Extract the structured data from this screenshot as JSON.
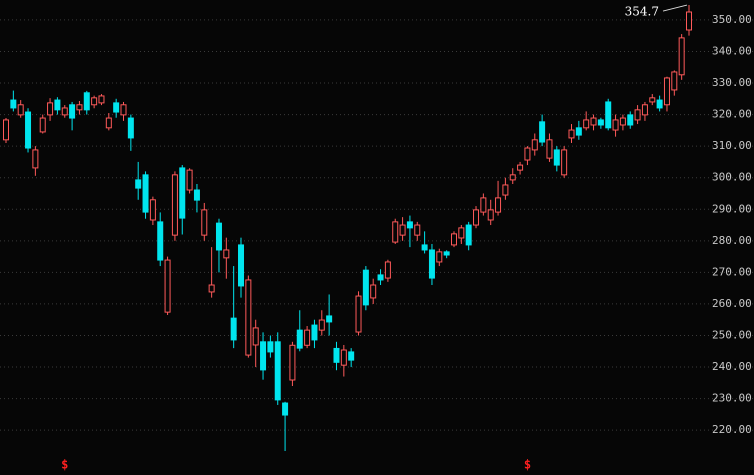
{
  "chart_data": {
    "type": "candlestick",
    "categories": [
      null,
      null,
      null,
      null,
      null,
      null,
      null,
      null,
      null,
      null,
      null,
      null,
      null,
      null,
      null,
      null,
      null,
      null,
      null,
      null,
      null,
      null,
      null,
      null,
      null,
      null,
      null,
      null,
      null,
      null,
      null,
      null,
      null,
      null,
      null,
      null,
      null,
      null,
      null,
      null,
      null,
      null,
      null,
      null,
      null,
      null,
      null,
      null,
      null,
      null,
      null,
      null,
      null,
      null,
      null,
      null,
      null,
      null,
      null,
      null,
      null,
      null,
      null,
      null,
      null,
      null,
      null,
      null,
      null,
      null,
      null,
      null,
      null,
      null,
      null,
      null,
      null,
      null,
      null,
      null,
      null,
      null,
      null,
      null,
      null,
      null,
      null,
      null,
      null,
      null,
      null,
      null,
      null,
      null
    ],
    "open": [
      312.0,
      324.6,
      319.9,
      320.8,
      303.1,
      314.5,
      319.9,
      324.6,
      319.9,
      323.1,
      321.5,
      326.9,
      323.1,
      323.7,
      315.8,
      323.7,
      319.9,
      318.9,
      299.3,
      300.9,
      286.6,
      286.0,
      257.4,
      281.8,
      303.1,
      296.1,
      296.1,
      281.8,
      263.8,
      285.6,
      274.6,
      255.5,
      278.7,
      243.8,
      247.0,
      248.0,
      248.0,
      248.0,
      228.6,
      235.9,
      251.7,
      246.9,
      253.3,
      251.7,
      256.2,
      245.9,
      240.6,
      244.8,
      251.1,
      270.7,
      261.9,
      269.2,
      268.2,
      279.6,
      281.8,
      286.0,
      281.8,
      278.7,
      277.1,
      273.3,
      276.5,
      278.7,
      280.9,
      285.0,
      285.0,
      289.1,
      286.6,
      289.1,
      294.5,
      299.3,
      302.4,
      305.6,
      308.8,
      317.7,
      306.2,
      308.8,
      300.9,
      312.6,
      315.8,
      315.8,
      316.7,
      318.3,
      324.0,
      315.1,
      316.7,
      319.9,
      318.3,
      319.9,
      324.0,
      324.6,
      323.1,
      327.8,
      332.6,
      346.8
    ],
    "high": [
      318.9,
      327.6,
      324.6,
      322.0,
      310.0,
      320.0,
      325.2,
      325.5,
      323.0,
      324.0,
      324.3,
      327.5,
      326.0,
      326.5,
      320.5,
      325.0,
      324.0,
      320.0,
      305.0,
      302.0,
      294.0,
      289.0,
      275.0,
      302.0,
      304.0,
      303.0,
      298.0,
      292.0,
      278.0,
      287.0,
      281.0,
      272.0,
      281.0,
      269.0,
      255.0,
      251.0,
      250.0,
      251.0,
      229.0,
      248.0,
      258.0,
      253.0,
      255.0,
      258.0,
      263.0,
      248.0,
      247.0,
      246.0,
      264.0,
      272.0,
      268.0,
      271.0,
      274.0,
      287.0,
      287.5,
      288.0,
      286.0,
      283.0,
      279.0,
      277.5,
      277.0,
      283.0,
      285.0,
      286.0,
      291.0,
      295.0,
      293.0,
      299.0,
      300.0,
      303.0,
      305.0,
      310.0,
      314.0,
      320.0,
      314.0,
      310.0,
      310.0,
      317.0,
      318.0,
      321.0,
      320.0,
      319.0,
      325.0,
      320.0,
      320.0,
      321.0,
      323.0,
      324.0,
      326.5,
      326.0,
      332.0,
      334.0,
      345.5,
      354.7
    ],
    "low": [
      311.0,
      321.0,
      319.0,
      308.0,
      300.6,
      314.0,
      318.0,
      320.0,
      319.0,
      315.0,
      320.0,
      320.0,
      322.0,
      323.0,
      315.0,
      319.0,
      318.0,
      308.5,
      293.0,
      287.0,
      285.0,
      272.0,
      256.5,
      280.0,
      282.0,
      295.0,
      289.0,
      280.0,
      262.0,
      270.0,
      268.0,
      246.0,
      262.0,
      243.0,
      240.0,
      236.0,
      243.0,
      228.0,
      213.4,
      234.0,
      245.0,
      246.0,
      246.0,
      250.0,
      250.0,
      239.0,
      237.0,
      240.0,
      250.0,
      258.0,
      260.0,
      266.0,
      267.0,
      279.0,
      280.0,
      278.0,
      280.0,
      276.0,
      266.0,
      272.0,
      274.5,
      278.0,
      279.0,
      277.0,
      284.0,
      288.0,
      285.0,
      288.0,
      293.0,
      298.0,
      301.0,
      304.0,
      307.0,
      310.0,
      305.0,
      302.0,
      300.0,
      311.0,
      312.0,
      315.0,
      315.0,
      315.5,
      315.0,
      313.0,
      315.0,
      315.5,
      317.0,
      318.0,
      323.0,
      321.0,
      321.0,
      326.0,
      331.0,
      345.0
    ],
    "close": [
      318.3,
      322.1,
      323.1,
      309.4,
      308.8,
      318.9,
      323.7,
      321.5,
      322.1,
      318.9,
      323.1,
      321.5,
      325.3,
      325.9,
      318.9,
      320.8,
      323.1,
      312.6,
      296.7,
      289.1,
      293.0,
      273.9,
      273.9,
      300.9,
      287.2,
      302.4,
      292.9,
      289.8,
      266.0,
      277.1,
      277.1,
      248.6,
      265.7,
      267.6,
      252.4,
      239.1,
      244.8,
      229.6,
      224.8,
      246.9,
      246.0,
      251.7,
      248.6,
      254.9,
      254.3,
      241.5,
      245.4,
      242.2,
      262.5,
      259.7,
      266.0,
      267.6,
      273.3,
      286.0,
      285.0,
      284.1,
      285.0,
      277.1,
      268.2,
      276.5,
      275.5,
      282.2,
      284.1,
      278.7,
      289.8,
      293.6,
      289.8,
      293.6,
      297.7,
      300.9,
      304.0,
      309.4,
      312.0,
      311.3,
      312.0,
      304.0,
      308.8,
      315.1,
      313.5,
      318.3,
      318.9,
      316.7,
      315.8,
      318.3,
      318.9,
      316.7,
      321.5,
      323.1,
      325.3,
      322.1,
      331.6,
      333.5,
      344.3,
      352.5
    ],
    "up_color": "#ff5a5a",
    "down_color": "#00e5ee",
    "ylim": [
      205.8,
      356.3
    ],
    "yticks": [
      {
        "value": 220,
        "label": "220.00"
      },
      {
        "value": 230,
        "label": "230.00"
      },
      {
        "value": 240,
        "label": "240.00"
      },
      {
        "value": 250,
        "label": "250.00"
      },
      {
        "value": 260,
        "label": "260.00"
      },
      {
        "value": 270,
        "label": "270.00"
      },
      {
        "value": 280,
        "label": "280.00"
      },
      {
        "value": 290,
        "label": "290.00"
      },
      {
        "value": 300,
        "label": "300.00"
      },
      {
        "value": 310,
        "label": "310.00"
      },
      {
        "value": 320,
        "label": "320.00"
      },
      {
        "value": 330,
        "label": "330.00"
      },
      {
        "value": 340,
        "label": "340.00"
      },
      {
        "value": 350,
        "label": "350.00"
      }
    ],
    "grid": true,
    "max_annotation": {
      "value": 354.7,
      "label": "354.7"
    },
    "markers": [
      {
        "category_index": 8,
        "label": "$"
      },
      {
        "category_index": 71,
        "label": "$"
      }
    ]
  }
}
